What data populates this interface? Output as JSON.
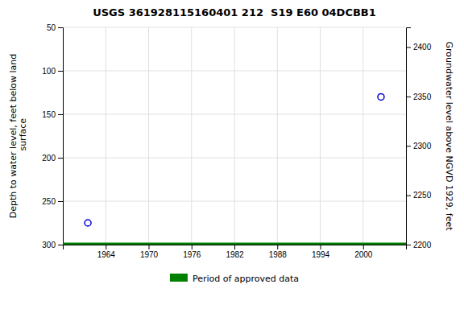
{
  "chart_data": {
    "type": "scatter",
    "title": "USGS 361928115160401 212  S19 E60 04DCBB1",
    "y_label": "Depth to water level, feet below land\n surface",
    "y2_label": "Groundwater level above NGVD 1929, feet",
    "xlim": [
      1958,
      2006
    ],
    "xticks": [
      1964,
      1970,
      1976,
      1982,
      1988,
      1994,
      2000
    ],
    "ylim": [
      300,
      50
    ],
    "yticks": [
      50,
      100,
      150,
      200,
      250,
      300
    ],
    "y2lim": [
      2200,
      2420
    ],
    "y2ticks": [
      2200,
      2250,
      2300,
      2350,
      2400
    ],
    "grid": true,
    "legend": "bottom",
    "series": [
      {
        "type": "scatter",
        "color": "#0000cd",
        "marker": "circle",
        "line_style": "none",
        "x": [
          1961.5,
          2002.5
        ],
        "values": [
          275,
          130
        ]
      },
      {
        "name": "Period of approved data",
        "type": "line",
        "color": "#008000",
        "line_style": "solid",
        "x": [
          1958,
          2006
        ],
        "values": [
          300,
          300
        ]
      }
    ]
  }
}
